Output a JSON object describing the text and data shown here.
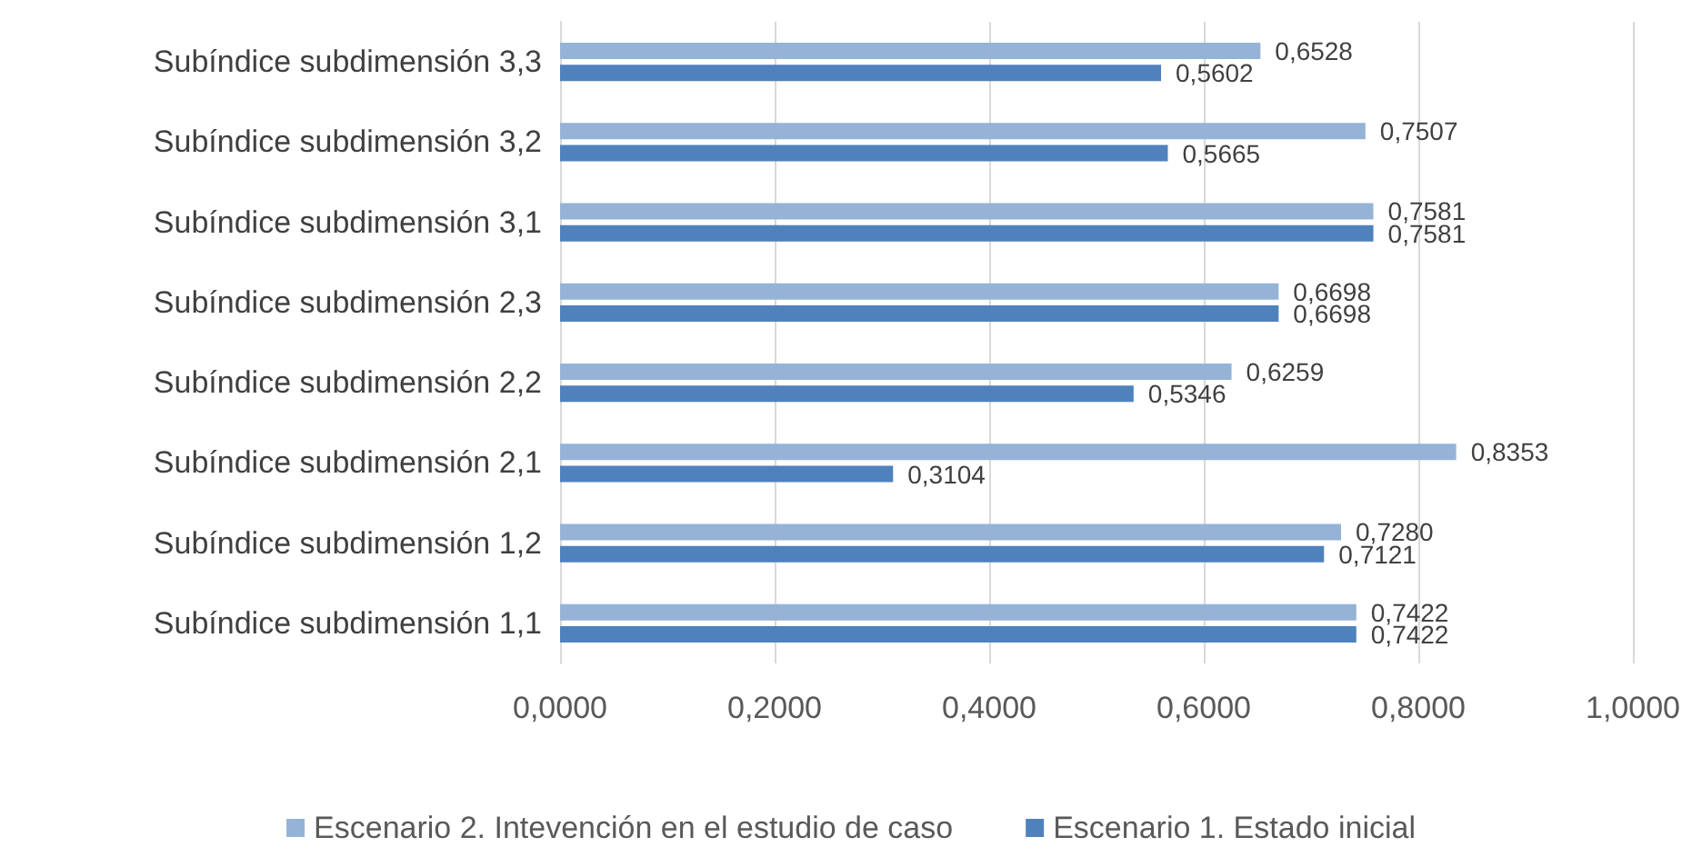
{
  "chart_data": {
    "type": "bar",
    "orientation": "horizontal",
    "categories": [
      "Subíndice subdimensión 3,3",
      "Subíndice subdimensión 3,2",
      "Subíndice subdimensión 3,1",
      "Subíndice subdimensión 2,3",
      "Subíndice subdimensión 2,2",
      "Subíndice subdimensión 2,1",
      "Subíndice subdimensión 1,2",
      "Subíndice subdimensión 1,1"
    ],
    "series": [
      {
        "name": "Escenario 2. Intevención en el estudio de caso",
        "color": "#95b3d7",
        "values": [
          0.6528,
          0.7507,
          0.7581,
          0.6698,
          0.6259,
          0.8353,
          0.728,
          0.7422
        ],
        "value_labels": [
          "0,6528",
          "0,7507",
          "0,7581",
          "0,6698",
          "0,6259",
          "0,8353",
          "0,7280",
          "0,7422"
        ]
      },
      {
        "name": "Escenario 1. Estado inicial",
        "color": "#4f81bd",
        "values": [
          0.5602,
          0.5665,
          0.7581,
          0.6698,
          0.5346,
          0.3104,
          0.7121,
          0.7422
        ],
        "value_labels": [
          "0,5602",
          "0,5665",
          "0,7581",
          "0,6698",
          "0,5346",
          "0,3104",
          "0,7121",
          "0,7422"
        ]
      }
    ],
    "xlim": [
      0,
      1
    ],
    "xticks": [
      {
        "value": 0,
        "label": "0,0000"
      },
      {
        "value": 0.2,
        "label": "0,2000"
      },
      {
        "value": 0.4,
        "label": "0,4000"
      },
      {
        "value": 0.6,
        "label": "0,6000"
      },
      {
        "value": 0.8,
        "label": "0,8000"
      },
      {
        "value": 1,
        "label": "1,0000"
      }
    ],
    "grid": "x",
    "legend": "bottom"
  }
}
